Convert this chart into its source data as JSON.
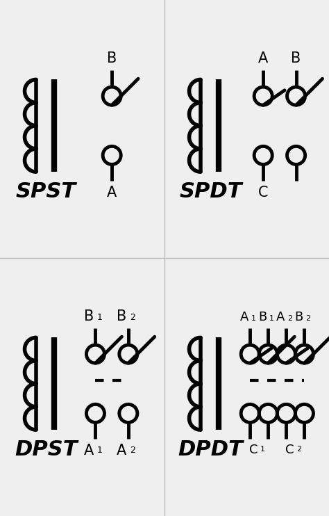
{
  "bg_color": "#efefef",
  "line_color": "#000000",
  "lw_coil": 4.0,
  "lw_bar": 6.0,
  "lw_sw": 3.5,
  "panels": [
    {
      "name": "SPST",
      "row": 0,
      "col": 0,
      "top_labels": [
        [
          "B",
          ""
        ]
      ],
      "bot_labels": [
        [
          "A",
          ""
        ]
      ],
      "n_switches": 1,
      "switch_open": [
        true
      ],
      "dashed": false,
      "spdt": false
    },
    {
      "name": "SPDT",
      "row": 0,
      "col": 1,
      "top_labels": [
        [
          "A",
          ""
        ],
        [
          "B",
          ""
        ]
      ],
      "bot_labels": [
        [
          "C",
          ""
        ]
      ],
      "n_switches": 2,
      "switch_open": [
        false,
        true
      ],
      "dashed": false,
      "spdt": true
    },
    {
      "name": "DPST",
      "row": 1,
      "col": 0,
      "top_labels": [
        [
          "B",
          "1"
        ],
        [
          "B",
          "2"
        ]
      ],
      "bot_labels": [
        [
          "A",
          "1"
        ],
        [
          "A",
          "2"
        ]
      ],
      "n_switches": 2,
      "switch_open": [
        true,
        true
      ],
      "dashed": true,
      "spdt": false
    },
    {
      "name": "DPDT",
      "row": 1,
      "col": 1,
      "top_labels": [
        [
          "A",
          "1"
        ],
        [
          "B",
          "1"
        ],
        [
          "A",
          "2"
        ],
        [
          "B",
          "2"
        ]
      ],
      "bot_labels": [
        [
          "C",
          "1"
        ],
        [
          "C",
          "2"
        ]
      ],
      "n_switches": 4,
      "switch_open": [
        false,
        true,
        false,
        true
      ],
      "dashed": true,
      "spdt": false
    }
  ]
}
